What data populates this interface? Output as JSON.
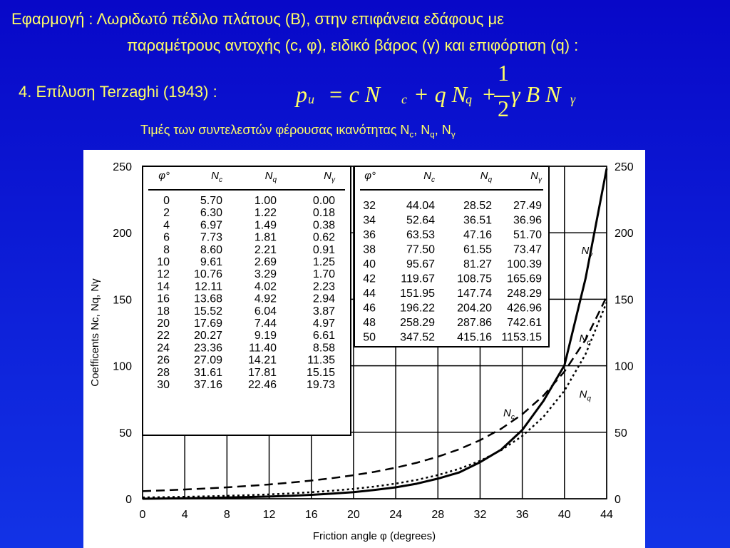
{
  "header": {
    "line1": "Εφαρμογή : Λωριδωτό πέδιλο πλάτους (B), στην επιφάνεια εδάφους με",
    "line2": "παραμέτρους αντοχής (c, φ), ειδικό βάρος (γ) και επιφόρτιση (q) :",
    "method": "4. Επίλυση Terzaghi (1943) :",
    "formula": [
      "p",
      "u",
      "= c N",
      "c",
      "+ q N",
      "q",
      "+",
      "1",
      "2",
      "γ B N",
      "γ"
    ],
    "subtitle": [
      "Τιμές των συντελεστών φέρουσας ικανότητας N",
      "c",
      ", N",
      "q",
      ", N",
      "γ"
    ]
  },
  "chart_data": {
    "type": "line",
    "x": [
      0,
      2,
      4,
      6,
      8,
      10,
      12,
      14,
      16,
      18,
      20,
      22,
      24,
      26,
      28,
      30,
      32,
      34,
      36,
      38,
      40,
      42,
      44
    ],
    "series": [
      {
        "name": "Nc",
        "color": "#000000",
        "style": "dashed",
        "values": [
          5.7,
          6.3,
          6.97,
          7.73,
          8.6,
          9.61,
          10.76,
          12.11,
          13.68,
          15.52,
          17.69,
          20.27,
          23.36,
          27.09,
          31.61,
          37.16,
          44.04,
          52.64,
          63.53,
          77.5,
          95.67,
          119.67,
          151.95
        ]
      },
      {
        "name": "Nq",
        "color": "#000000",
        "style": "dotted",
        "values": [
          1.0,
          1.22,
          1.49,
          1.81,
          2.21,
          2.69,
          3.29,
          4.02,
          4.92,
          6.04,
          7.44,
          9.19,
          11.4,
          14.21,
          17.81,
          22.46,
          28.52,
          36.51,
          47.16,
          61.55,
          81.27,
          108.75,
          147.74
        ]
      },
      {
        "name": "Nγ",
        "color": "#000000",
        "style": "solid",
        "values": [
          0.0,
          0.18,
          0.38,
          0.62,
          0.91,
          1.25,
          1.7,
          2.23,
          2.94,
          3.87,
          4.97,
          6.61,
          8.58,
          11.35,
          15.15,
          19.73,
          27.49,
          36.96,
          51.7,
          73.47,
          100.39,
          165.69,
          248.29
        ]
      }
    ],
    "xlim": [
      0,
      44
    ],
    "ylim": [
      0,
      250
    ],
    "xticks": [
      0,
      4,
      8,
      12,
      16,
      20,
      24,
      28,
      32,
      36,
      40,
      44
    ],
    "yticks": [
      0,
      50,
      100,
      150,
      200,
      250
    ],
    "grid": true,
    "xlabel": "Friction angle φ (degrees)",
    "ylabel": "Coefficents Nc, Nq, Nγ",
    "table": {
      "headers": [
        "φ°",
        "Nc",
        "Nq",
        "Nγ"
      ],
      "left_rows": [
        [
          "0",
          "5.70",
          "1.00",
          "0.00"
        ],
        [
          "2",
          "6.30",
          "1.22",
          "0.18"
        ],
        [
          "4",
          "6.97",
          "1.49",
          "0.38"
        ],
        [
          "6",
          "7.73",
          "1.81",
          "0.62"
        ],
        [
          "8",
          "8.60",
          "2.21",
          "0.91"
        ],
        [
          "10",
          "9.61",
          "2.69",
          "1.25"
        ],
        [
          "12",
          "10.76",
          "3.29",
          "1.70"
        ],
        [
          "14",
          "12.11",
          "4.02",
          "2.23"
        ],
        [
          "16",
          "13.68",
          "4.92",
          "2.94"
        ],
        [
          "18",
          "15.52",
          "6.04",
          "3.87"
        ],
        [
          "20",
          "17.69",
          "7.44",
          "4.97"
        ],
        [
          "22",
          "20.27",
          "9.19",
          "6.61"
        ],
        [
          "24",
          "23.36",
          "11.40",
          "8.58"
        ],
        [
          "26",
          "27.09",
          "14.21",
          "11.35"
        ],
        [
          "28",
          "31.61",
          "17.81",
          "15.15"
        ],
        [
          "30",
          "37.16",
          "22.46",
          "19.73"
        ]
      ],
      "right_rows": [
        [
          "32",
          "44.04",
          "28.52",
          "27.49"
        ],
        [
          "34",
          "52.64",
          "36.51",
          "36.96"
        ],
        [
          "36",
          "63.53",
          "47.16",
          "51.70"
        ],
        [
          "38",
          "77.50",
          "61.55",
          "73.47"
        ],
        [
          "40",
          "95.67",
          "81.27",
          "100.39"
        ],
        [
          "42",
          "119.67",
          "108.75",
          "165.69"
        ],
        [
          "44",
          "151.95",
          "147.74",
          "248.29"
        ],
        [
          "46",
          "196.22",
          "204.20",
          "426.96"
        ],
        [
          "48",
          "258.29",
          "287.86",
          "742.61"
        ],
        [
          "50",
          "347.52",
          "415.16",
          "1153.15"
        ]
      ]
    }
  }
}
